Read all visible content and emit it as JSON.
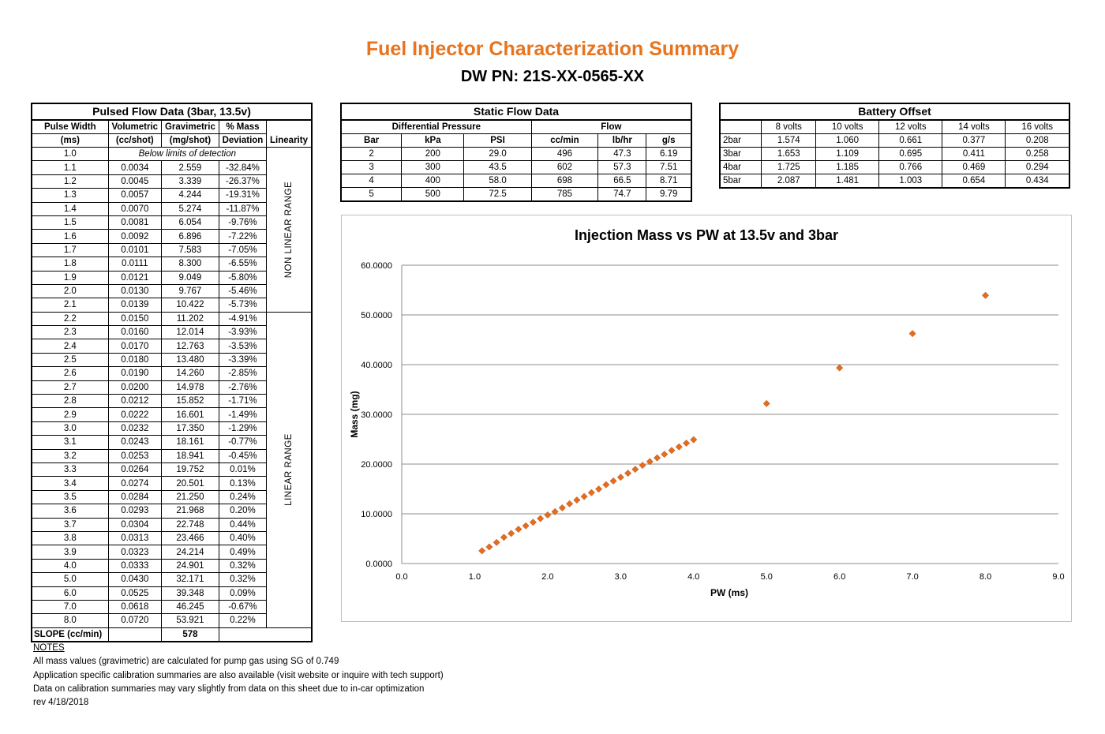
{
  "header": {
    "title": "Fuel Injector Characterization Summary",
    "part_number": "DW PN: 21S-XX-0565-XX"
  },
  "pulsed": {
    "caption": "Pulsed Flow Data (3bar, 13.5v)",
    "headers": {
      "pw1": "Pulse Width",
      "pw2": "(ms)",
      "vol1": "Volumetric",
      "vol2": "(cc/shot)",
      "grav1": "Gravimetric",
      "grav2": "(mg/shot)",
      "dev1": "% Mass",
      "dev2": "Deviation",
      "lin": "Linearity"
    },
    "first_row": {
      "pw": "1.0",
      "note": "Below limits of detection"
    },
    "non_linear_label": "NON LINEAR RANGE",
    "linear_label": "LINEAR RANGE",
    "rows": [
      [
        "1.1",
        "0.0034",
        "2.559",
        "-32.84%"
      ],
      [
        "1.2",
        "0.0045",
        "3.339",
        "-26.37%"
      ],
      [
        "1.3",
        "0.0057",
        "4.244",
        "-19.31%"
      ],
      [
        "1.4",
        "0.0070",
        "5.274",
        "-11.87%"
      ],
      [
        "1.5",
        "0.0081",
        "6.054",
        "-9.76%"
      ],
      [
        "1.6",
        "0.0092",
        "6.896",
        "-7.22%"
      ],
      [
        "1.7",
        "0.0101",
        "7.583",
        "-7.05%"
      ],
      [
        "1.8",
        "0.0111",
        "8.300",
        "-6.55%"
      ],
      [
        "1.9",
        "0.0121",
        "9.049",
        "-5.80%"
      ],
      [
        "2.0",
        "0.0130",
        "9.767",
        "-5.46%"
      ],
      [
        "2.1",
        "0.0139",
        "10.422",
        "-5.73%"
      ],
      [
        "2.2",
        "0.0150",
        "11.202",
        "-4.91%"
      ],
      [
        "2.3",
        "0.0160",
        "12.014",
        "-3.93%"
      ],
      [
        "2.4",
        "0.0170",
        "12.763",
        "-3.53%"
      ],
      [
        "2.5",
        "0.0180",
        "13.480",
        "-3.39%"
      ],
      [
        "2.6",
        "0.0190",
        "14.260",
        "-2.85%"
      ],
      [
        "2.7",
        "0.0200",
        "14.978",
        "-2.76%"
      ],
      [
        "2.8",
        "0.0212",
        "15.852",
        "-1.71%"
      ],
      [
        "2.9",
        "0.0222",
        "16.601",
        "-1.49%"
      ],
      [
        "3.0",
        "0.0232",
        "17.350",
        "-1.29%"
      ],
      [
        "3.1",
        "0.0243",
        "18.161",
        "-0.77%"
      ],
      [
        "3.2",
        "0.0253",
        "18.941",
        "-0.45%"
      ],
      [
        "3.3",
        "0.0264",
        "19.752",
        "0.01%"
      ],
      [
        "3.4",
        "0.0274",
        "20.501",
        "0.13%"
      ],
      [
        "3.5",
        "0.0284",
        "21.250",
        "0.24%"
      ],
      [
        "3.6",
        "0.0293",
        "21.968",
        "0.20%"
      ],
      [
        "3.7",
        "0.0304",
        "22.748",
        "0.44%"
      ],
      [
        "3.8",
        "0.0313",
        "23.466",
        "0.40%"
      ],
      [
        "3.9",
        "0.0323",
        "24.214",
        "0.49%"
      ],
      [
        "4.0",
        "0.0333",
        "24.901",
        "0.32%"
      ],
      [
        "5.0",
        "0.0430",
        "32.171",
        "0.32%"
      ],
      [
        "6.0",
        "0.0525",
        "39.348",
        "0.09%"
      ],
      [
        "7.0",
        "0.0618",
        "46.245",
        "-0.67%"
      ],
      [
        "8.0",
        "0.0720",
        "53.921",
        "0.22%"
      ]
    ],
    "slope_label": "SLOPE (cc/min)",
    "slope_value": "578"
  },
  "static": {
    "caption": "Static Flow Data",
    "group_dp": "Differential Pressure",
    "group_flow": "Flow",
    "headers": [
      "Bar",
      "kPa",
      "PSI",
      "cc/min",
      "lb/hr",
      "g/s"
    ],
    "rows": [
      [
        "2",
        "200",
        "29.0",
        "496",
        "47.3",
        "6.19"
      ],
      [
        "3",
        "300",
        "43.5",
        "602",
        "57.3",
        "7.51"
      ],
      [
        "4",
        "400",
        "58.0",
        "698",
        "66.5",
        "8.71"
      ],
      [
        "5",
        "500",
        "72.5",
        "785",
        "74.7",
        "9.79"
      ]
    ]
  },
  "battery": {
    "caption": "Battery Offset",
    "headers": [
      "8 volts",
      "10 volts",
      "12 volts",
      "14 volts",
      "16 volts"
    ],
    "rows": [
      [
        "2bar",
        "1.574",
        "1.060",
        "0.661",
        "0.377",
        "0.208"
      ],
      [
        "3bar",
        "1.653",
        "1.109",
        "0.695",
        "0.411",
        "0.258"
      ],
      [
        "4bar",
        "1.725",
        "1.185",
        "0.766",
        "0.469",
        "0.294"
      ],
      [
        "5bar",
        "2.087",
        "1.481",
        "1.003",
        "0.654",
        "0.434"
      ]
    ]
  },
  "chart_data": {
    "type": "scatter",
    "title": "Injection Mass vs PW at 13.5v and 3bar",
    "xlabel": "PW (ms)",
    "ylabel": "Mass (mg)",
    "xlim": [
      0,
      9
    ],
    "ylim": [
      0,
      60
    ],
    "x_ticks": [
      "0.0",
      "1.0",
      "2.0",
      "3.0",
      "4.0",
      "5.0",
      "6.0",
      "7.0",
      "8.0",
      "9.0"
    ],
    "y_ticks": [
      "0.0000",
      "10.0000",
      "20.0000",
      "30.0000",
      "40.0000",
      "50.0000",
      "60.0000"
    ],
    "grid": "horizontal",
    "legend": "none",
    "marker_color": "#e46c1f",
    "points": [
      [
        1.1,
        2.559
      ],
      [
        1.2,
        3.339
      ],
      [
        1.3,
        4.244
      ],
      [
        1.4,
        5.274
      ],
      [
        1.5,
        6.054
      ],
      [
        1.6,
        6.896
      ],
      [
        1.7,
        7.583
      ],
      [
        1.8,
        8.3
      ],
      [
        1.9,
        9.049
      ],
      [
        2.0,
        9.767
      ],
      [
        2.1,
        10.422
      ],
      [
        2.2,
        11.202
      ],
      [
        2.3,
        12.014
      ],
      [
        2.4,
        12.763
      ],
      [
        2.5,
        13.48
      ],
      [
        2.6,
        14.26
      ],
      [
        2.7,
        14.978
      ],
      [
        2.8,
        15.852
      ],
      [
        2.9,
        16.601
      ],
      [
        3.0,
        17.35
      ],
      [
        3.1,
        18.161
      ],
      [
        3.2,
        18.941
      ],
      [
        3.3,
        19.752
      ],
      [
        3.4,
        20.501
      ],
      [
        3.5,
        21.25
      ],
      [
        3.6,
        21.968
      ],
      [
        3.7,
        22.748
      ],
      [
        3.8,
        23.466
      ],
      [
        3.9,
        24.214
      ],
      [
        4.0,
        24.901
      ],
      [
        5.0,
        32.171
      ],
      [
        6.0,
        39.348
      ],
      [
        7.0,
        46.245
      ],
      [
        8.0,
        53.921
      ]
    ]
  },
  "notes": {
    "title": "NOTES",
    "lines": [
      "All mass values (gravimetric) are calculated for pump gas using SG of 0.749",
      "Application specific calibration summaries are also available (visit website or inquire with tech support)",
      "Data on calibration summaries may vary slightly from data on this sheet due to in-car optimization",
      "rev 4/18/2018"
    ]
  }
}
